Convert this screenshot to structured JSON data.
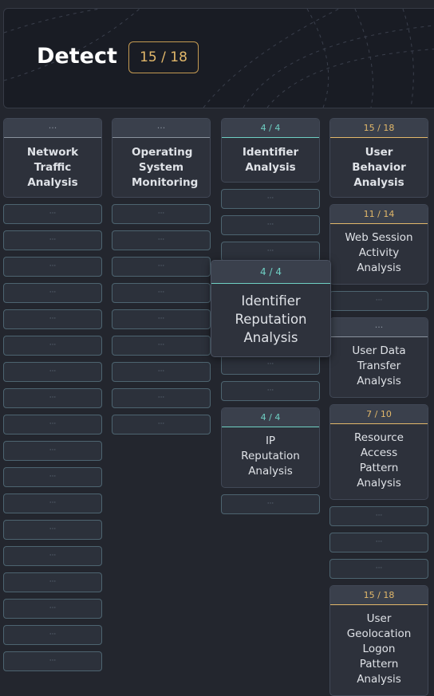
{
  "header": {
    "title": "Detect",
    "badge": "15 / 18"
  },
  "columns": [
    {
      "items": [
        {
          "count": "···",
          "label": "Network Traffic Analysis",
          "color": "#8a929e"
        },
        {
          "label": "···"
        },
        {
          "label": "···"
        },
        {
          "label": "···"
        },
        {
          "label": "···"
        },
        {
          "label": "···"
        },
        {
          "label": "···"
        },
        {
          "label": "···"
        },
        {
          "label": "···"
        },
        {
          "label": "···"
        },
        {
          "label": "···"
        },
        {
          "label": "···"
        },
        {
          "label": "···"
        },
        {
          "label": "···"
        },
        {
          "label": "···"
        },
        {
          "label": "···"
        },
        {
          "label": "···"
        },
        {
          "label": "···"
        },
        {
          "label": "···"
        }
      ]
    },
    {
      "items": [
        {
          "count": "···",
          "label": "Operating System Monitoring",
          "color": "#8a929e"
        },
        {
          "label": "···"
        },
        {
          "label": "···"
        },
        {
          "label": "···"
        },
        {
          "label": "···"
        },
        {
          "label": "···"
        },
        {
          "label": "···"
        },
        {
          "label": "···"
        },
        {
          "label": "···"
        },
        {
          "label": "···"
        }
      ]
    },
    {
      "items": [
        {
          "count": "4 / 4",
          "label": "Identifier Analysis",
          "color": "#6fd0c4"
        },
        {
          "label": "···"
        },
        {
          "label": "···"
        },
        {
          "label": "···"
        },
        {
          "count": "4 / 4",
          "label": "Identifier Reputation Analysis",
          "color": "#6fd0c4",
          "hovered": true
        },
        {
          "label": "···"
        },
        {
          "label": "···"
        },
        {
          "count": "4 / 4",
          "label": "IP Reputation Analysis",
          "color": "#6fd0c4"
        },
        {
          "label": "···"
        }
      ]
    },
    {
      "items": [
        {
          "count": "15 / 18",
          "label": "User Behavior Analysis",
          "color": "#e2b86a"
        },
        {
          "count": "11 / 14",
          "label": "Web Session Activity Analysis",
          "color": "#e2b86a"
        },
        {
          "label": "···"
        },
        {
          "count": "···",
          "label": "User Data Transfer Analysis",
          "color": "#8a929e"
        },
        {
          "count": "7 / 10",
          "label": "Resource Access Pattern Analysis",
          "color": "#e2b86a"
        },
        {
          "label": "···"
        },
        {
          "label": "···"
        },
        {
          "label": "···"
        },
        {
          "count": "15 / 18",
          "label": "User Geolocation Logon Pattern Analysis",
          "color": "#e2b86a"
        }
      ]
    }
  ]
}
